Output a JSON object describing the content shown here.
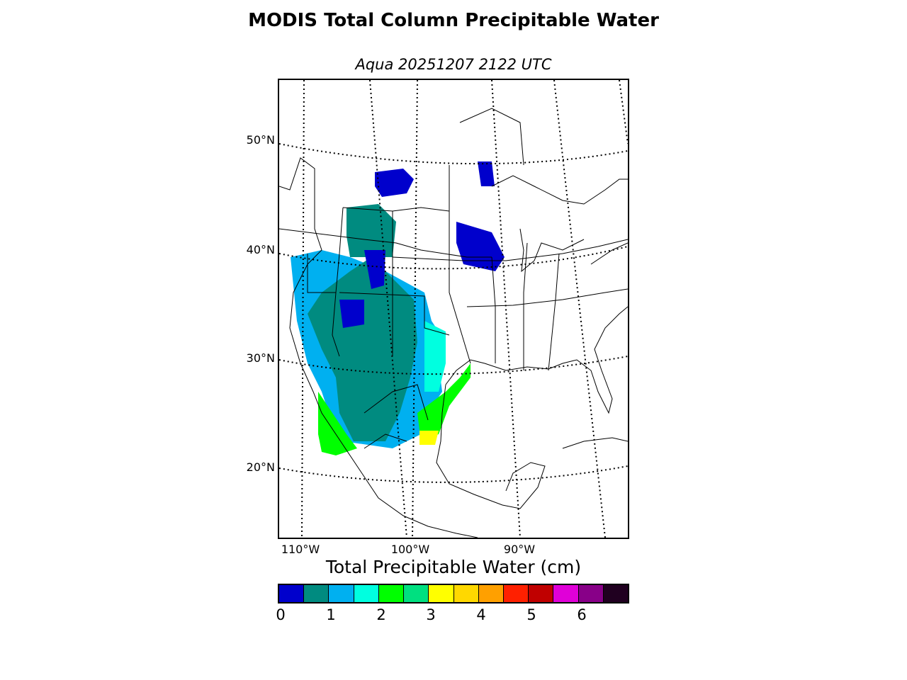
{
  "title": "MODIS Total Column Precipitable Water",
  "subtitle": "Aqua 20251207 2122 UTC",
  "lat_labels": [
    "50°N",
    "40°N",
    "30°N",
    "20°N"
  ],
  "lon_labels": [
    "110°W",
    "100°W",
    "90°W"
  ],
  "colorbar": {
    "label": "Total Precipitable Water (cm)",
    "ticks": [
      "0",
      "1",
      "2",
      "3",
      "4",
      "5",
      "6"
    ],
    "colors": [
      "#0000cc",
      "#008b80",
      "#00b0f0",
      "#00ffe0",
      "#00ff00",
      "#00e080",
      "#ffff00",
      "#ffd800",
      "#ffa000",
      "#ff2000",
      "#c00000",
      "#e000d8",
      "#880088",
      "#200020"
    ]
  }
}
